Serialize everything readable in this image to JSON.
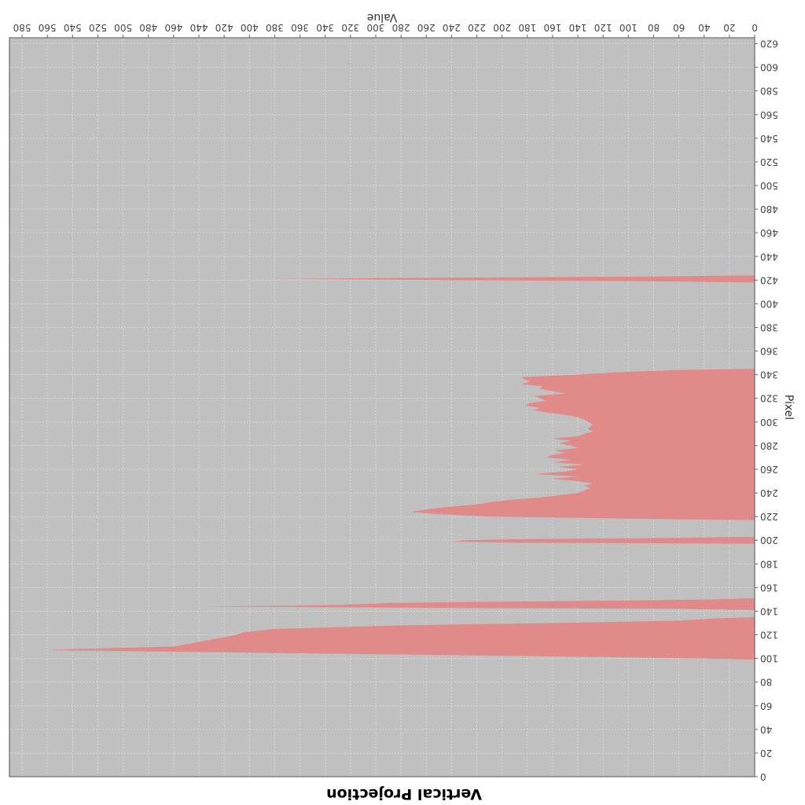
{
  "chart_data": {
    "type": "area",
    "orientation": "rotated-180",
    "title": "Vertical Projection",
    "xlabel": "Value",
    "ylabel": "Pixel",
    "xlim": [
      0,
      590
    ],
    "ylim": [
      0,
      625
    ],
    "x_ticks": [
      "0",
      "20",
      "40",
      "60",
      "80",
      "100",
      "120",
      "140",
      "160",
      "180",
      "200",
      "220",
      "240",
      "260",
      "280",
      "300",
      "320",
      "340",
      "360",
      "380",
      "400",
      "420",
      "440",
      "460",
      "480",
      "500",
      "520",
      "540",
      "560",
      "580"
    ],
    "y_ticks": [
      "0",
      "20",
      "40",
      "60",
      "80",
      "100",
      "120",
      "140",
      "160",
      "180",
      "200",
      "220",
      "240",
      "260",
      "280",
      "300",
      "320",
      "340",
      "360",
      "380",
      "400",
      "420",
      "440",
      "460",
      "480",
      "500",
      "520",
      "540",
      "560",
      "580",
      "600",
      "620"
    ],
    "colors": {
      "plot_background": "#c0c0c0",
      "area_fill": "#e08a8a",
      "grid": "#d8d8d8"
    },
    "series": [
      {
        "name": "Vertical Projection",
        "points": [
          [
            0,
            0
          ],
          [
            99,
            0
          ],
          [
            100,
            40
          ],
          [
            102,
            180
          ],
          [
            104,
            330
          ],
          [
            106,
            480
          ],
          [
            107,
            560
          ],
          [
            108,
            540
          ],
          [
            110,
            460
          ],
          [
            112,
            450
          ],
          [
            114,
            440
          ],
          [
            116,
            430
          ],
          [
            118,
            420
          ],
          [
            120,
            410
          ],
          [
            122,
            405
          ],
          [
            125,
            380
          ],
          [
            128,
            280
          ],
          [
            130,
            160
          ],
          [
            132,
            60
          ],
          [
            134,
            30
          ],
          [
            135,
            0
          ],
          [
            141,
            0
          ],
          [
            142,
            60
          ],
          [
            143,
            280
          ],
          [
            144,
            440
          ],
          [
            145,
            340
          ],
          [
            146,
            310
          ],
          [
            147,
            290
          ],
          [
            148,
            200
          ],
          [
            149,
            100
          ],
          [
            150,
            30
          ],
          [
            151,
            0
          ],
          [
            197,
            0
          ],
          [
            198,
            200
          ],
          [
            199,
            240
          ],
          [
            200,
            230
          ],
          [
            201,
            180
          ],
          [
            202,
            60
          ],
          [
            203,
            0
          ],
          [
            217,
            0
          ],
          [
            218,
            80
          ],
          [
            220,
            210
          ],
          [
            222,
            250
          ],
          [
            224,
            272
          ],
          [
            226,
            260
          ],
          [
            228,
            245
          ],
          [
            230,
            222
          ],
          [
            232,
            210
          ],
          [
            234,
            195
          ],
          [
            236,
            170
          ],
          [
            238,
            155
          ],
          [
            240,
            140
          ],
          [
            242,
            135
          ],
          [
            244,
            130
          ],
          [
            246,
            135
          ],
          [
            248,
            128
          ],
          [
            250,
            140
          ],
          [
            252,
            160
          ],
          [
            254,
            140
          ],
          [
            256,
            175
          ],
          [
            258,
            150
          ],
          [
            260,
            140
          ],
          [
            262,
            155
          ],
          [
            264,
            135
          ],
          [
            266,
            160
          ],
          [
            268,
            145
          ],
          [
            270,
            165
          ],
          [
            272,
            160
          ],
          [
            274,
            150
          ],
          [
            276,
            158
          ],
          [
            278,
            140
          ],
          [
            280,
            145
          ],
          [
            282,
            155
          ],
          [
            284,
            145
          ],
          [
            286,
            160
          ],
          [
            288,
            140
          ],
          [
            290,
            135
          ],
          [
            292,
            128
          ],
          [
            294,
            132
          ],
          [
            296,
            130
          ],
          [
            298,
            128
          ],
          [
            300,
            132
          ],
          [
            302,
            135
          ],
          [
            304,
            140
          ],
          [
            306,
            150
          ],
          [
            308,
            165
          ],
          [
            310,
            175
          ],
          [
            312,
            170
          ],
          [
            314,
            182
          ],
          [
            316,
            178
          ],
          [
            318,
            165
          ],
          [
            320,
            170
          ],
          [
            322,
            175
          ],
          [
            324,
            150
          ],
          [
            326,
            160
          ],
          [
            328,
            170
          ],
          [
            330,
            168
          ],
          [
            332,
            185
          ],
          [
            334,
            178
          ],
          [
            336,
            182
          ],
          [
            338,
            185
          ],
          [
            340,
            140
          ],
          [
            342,
            110
          ],
          [
            344,
            60
          ],
          [
            345,
            0
          ],
          [
            418,
            0
          ],
          [
            419,
            80
          ],
          [
            420,
            240
          ],
          [
            421,
            380
          ],
          [
            422,
            250
          ],
          [
            423,
            80
          ],
          [
            424,
            0
          ],
          [
            625,
            0
          ]
        ]
      }
    ]
  }
}
